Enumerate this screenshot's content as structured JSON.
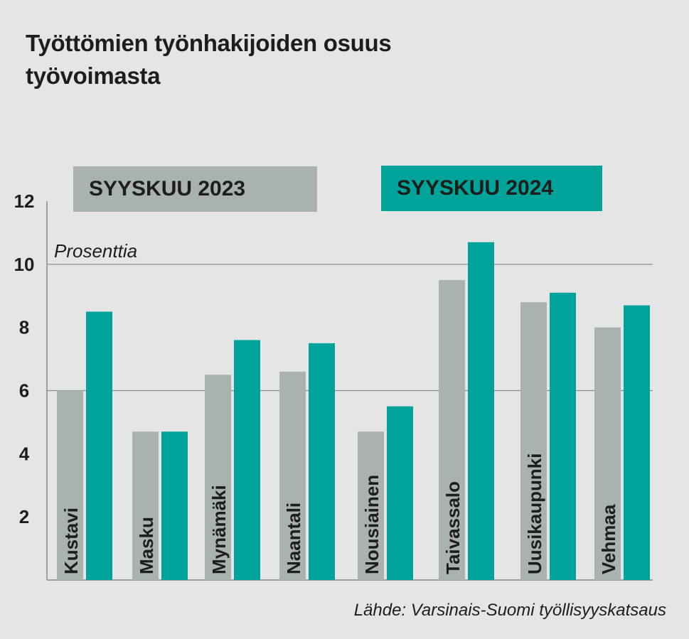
{
  "title_line1": "Työttömien työnhakijoiden osuus",
  "title_line2": "työvoimasta",
  "unit_label": "Prosenttia",
  "source": "Lähde: Varsinais-Suomi työllisyyskatsaus",
  "colors": {
    "series_2023": "#a9b2ad",
    "series_2024": "#00a39a",
    "background": "#e5e5e5",
    "text": "#1d1d1b",
    "gridline": "#8a8a8a"
  },
  "chart_data": {
    "type": "bar",
    "categories": [
      "Kustavi",
      "Masku",
      "Mynämäki",
      "Naantali",
      "Nousiainen",
      "Taivassalo",
      "Uusikaupunki",
      "Vehmaa"
    ],
    "series": [
      {
        "name": "SYYSKUU 2023",
        "values": [
          6.0,
          4.7,
          6.5,
          6.6,
          4.7,
          9.5,
          8.8,
          8.0
        ]
      },
      {
        "name": "SYYSKUU 2024",
        "values": [
          8.5,
          4.7,
          7.6,
          7.5,
          5.5,
          10.7,
          9.1,
          8.7
        ]
      }
    ],
    "ylim": [
      0,
      12
    ],
    "yticks": [
      2,
      4,
      6,
      8,
      10,
      12
    ],
    "gridlines_at": [
      6,
      10
    ],
    "grid": true,
    "legend_placement": "top",
    "ylabel": "Prosenttia"
  }
}
